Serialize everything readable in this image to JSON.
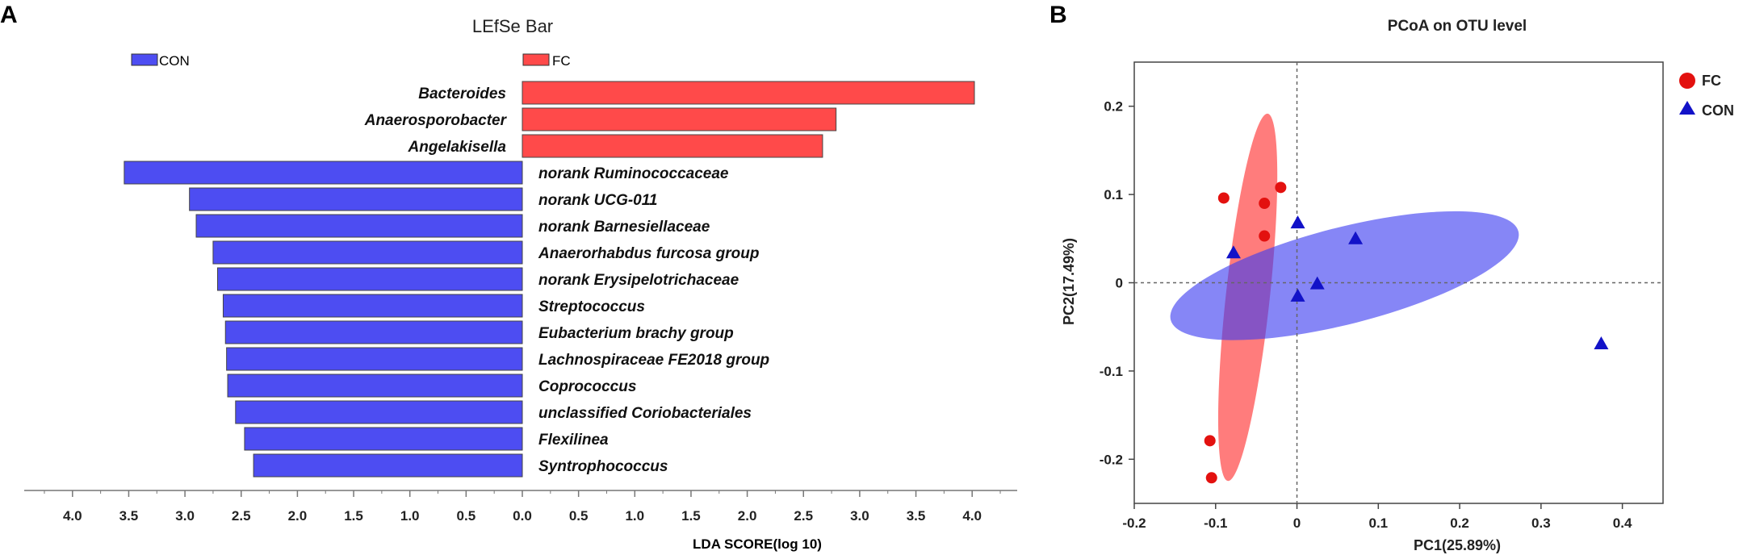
{
  "panel_a_label": "A",
  "panel_b_label": "B",
  "colors": {
    "fc": "#ff4a4a",
    "con": "#4d4df2",
    "fc_point": "#e3110f",
    "con_point": "#1212c8"
  },
  "chart_data": [
    {
      "type": "bar",
      "title": "LEfSe Bar",
      "xlabel": "LDA SCORE(log 10)",
      "legend": [
        "CON",
        "FC"
      ],
      "xticks_left": [
        "4.0",
        "3.5",
        "3.0",
        "2.5",
        "2.0",
        "1.5",
        "1.0",
        "0.5",
        "0.0"
      ],
      "xticks_right": [
        "0.5",
        "1.0",
        "1.5",
        "2.0",
        "2.5",
        "3.0",
        "3.5",
        "4.0"
      ],
      "xlim": [
        -4.4,
        4.4
      ],
      "bars": [
        {
          "taxon": "Bacteroides",
          "group": "FC",
          "lda": 4.02
        },
        {
          "taxon": "Anaerosporobacter",
          "group": "FC",
          "lda": 2.79
        },
        {
          "taxon": "Angelakisella",
          "group": "FC",
          "lda": 2.67
        },
        {
          "taxon": "norank Ruminococcaceae",
          "group": "CON",
          "lda": 3.54
        },
        {
          "taxon": "norank UCG-011",
          "group": "CON",
          "lda": 2.96
        },
        {
          "taxon": "norank Barnesiellaceae",
          "group": "CON",
          "lda": 2.9
        },
        {
          "taxon": "Anaerorhabdus furcosa group",
          "group": "CON",
          "lda": 2.75
        },
        {
          "taxon": "norank Erysipelotrichaceae",
          "group": "CON",
          "lda": 2.71
        },
        {
          "taxon": "Streptococcus",
          "group": "CON",
          "lda": 2.66
        },
        {
          "taxon": "Eubacterium brachy group",
          "group": "CON",
          "lda": 2.64
        },
        {
          "taxon": "Lachnospiraceae FE2018 group",
          "group": "CON",
          "lda": 2.63
        },
        {
          "taxon": "Coprococcus",
          "group": "CON",
          "lda": 2.62
        },
        {
          "taxon": "unclassified Coriobacteriales",
          "group": "CON",
          "lda": 2.55
        },
        {
          "taxon": "Flexilinea",
          "group": "CON",
          "lda": 2.47
        },
        {
          "taxon": "Syntrophococcus",
          "group": "CON",
          "lda": 2.39
        }
      ]
    },
    {
      "type": "scatter",
      "title": "PCoA on OTU level",
      "xlabel": "PC1(25.89%)",
      "ylabel": "PC2(17.49%)",
      "xlim": [
        -0.2,
        0.45
      ],
      "ylim": [
        -0.25,
        0.25
      ],
      "xticks": [
        "-0.2",
        "-0.1",
        "0",
        "0.1",
        "0.2",
        "0.3",
        "0.4"
      ],
      "xtick_values": [
        -0.2,
        -0.1,
        0,
        0.1,
        0.2,
        0.3,
        0.4
      ],
      "yticks": [
        "0.2",
        "0.1",
        "0",
        "-0.1",
        "-0.2"
      ],
      "ytick_values": [
        0.2,
        0.1,
        0,
        -0.1,
        -0.2
      ],
      "legend": [
        "FC",
        "CON"
      ],
      "series": [
        {
          "name": "FC",
          "marker": "circle",
          "points": [
            [
              -0.09,
              0.096
            ],
            [
              -0.04,
              0.09
            ],
            [
              -0.02,
              0.108
            ],
            [
              -0.04,
              0.053
            ],
            [
              -0.107,
              -0.179
            ],
            [
              -0.105,
              -0.221
            ]
          ],
          "ellipse": {
            "cx": -0.0605,
            "cy": -0.0165,
            "rx": 0.2095,
            "ry": 0.027,
            "angle_deg": 83.3
          }
        },
        {
          "name": "CON",
          "marker": "triangle",
          "points": [
            [
              0.001,
              0.068
            ],
            [
              0.072,
              0.05
            ],
            [
              -0.078,
              0.034
            ],
            [
              0.025,
              -0.001
            ],
            [
              0.001,
              -0.015
            ],
            [
              0.374,
              -0.069
            ]
          ],
          "ellipse": {
            "cx": 0.0585,
            "cy": 0.008,
            "rx": 0.2195,
            "ry": 0.055,
            "angle_deg": 13.2
          }
        }
      ]
    }
  ]
}
